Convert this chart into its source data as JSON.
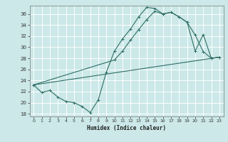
{
  "xlabel": "Humidex (Indice chaleur)",
  "bg_color": "#cce8e8",
  "grid_color": "#b8d8d8",
  "line_color": "#2e6e65",
  "xlim": [
    -0.5,
    23.5
  ],
  "ylim": [
    17.5,
    37.5
  ],
  "yticks": [
    18,
    20,
    22,
    24,
    26,
    28,
    30,
    32,
    34,
    36
  ],
  "xticks": [
    0,
    1,
    2,
    3,
    4,
    5,
    6,
    7,
    8,
    9,
    10,
    11,
    12,
    13,
    14,
    15,
    16,
    17,
    18,
    19,
    20,
    21,
    22,
    23
  ],
  "line1_x": [
    0,
    1,
    2,
    3,
    4,
    5,
    6,
    7,
    8,
    9,
    10,
    11,
    12,
    13,
    14,
    15,
    16,
    17,
    18,
    19,
    20,
    21,
    22,
    23
  ],
  "line1_y": [
    23.2,
    21.8,
    22.2,
    21.0,
    20.2,
    20.0,
    19.3,
    18.2,
    20.5,
    25.5,
    29.3,
    31.5,
    33.3,
    35.5,
    37.2,
    37.0,
    36.0,
    36.3,
    35.5,
    34.5,
    29.3,
    32.3,
    28.0,
    28.2
  ],
  "line2_x": [
    0,
    10,
    11,
    12,
    13,
    14,
    15,
    16,
    17,
    18,
    19,
    20,
    21,
    22,
    23
  ],
  "line2_y": [
    23.2,
    27.7,
    29.3,
    31.3,
    33.2,
    35.0,
    36.5,
    36.0,
    36.3,
    35.5,
    34.5,
    32.2,
    29.2,
    28.0,
    28.2
  ],
  "line3_x": [
    0,
    23
  ],
  "line3_y": [
    23.2,
    28.2
  ],
  "figsize": [
    3.2,
    2.0
  ],
  "dpi": 100
}
